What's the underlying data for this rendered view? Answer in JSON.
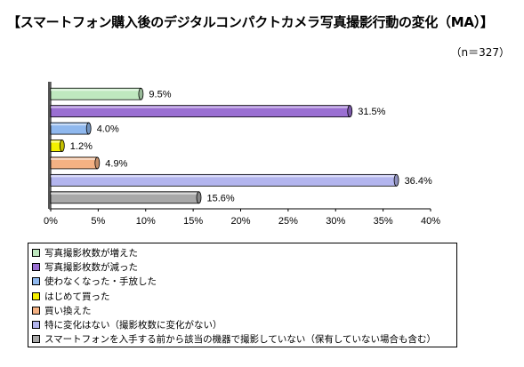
{
  "title": "【スマートフォン購入後のデジタルコンパクトカメラ写真撮影行動の変化（MA）】",
  "sample_size": "（n＝327）",
  "chart_data": {
    "type": "bar",
    "orientation": "horizontal",
    "style": "3d-cylinder",
    "categories": [
      "写真撮影枚数が増えた",
      "写真撮影枚数が減った",
      "使わなくなった・手放した",
      "はじめて買った",
      "買い換えた",
      "特に変化はない（撮影枚数に変化がない）",
      "スマートフォンを入手する前から該当の機器で撮影していない（保有していない場合も含む）"
    ],
    "values": [
      9.5,
      31.5,
      4.0,
      1.2,
      4.9,
      36.4,
      15.6
    ],
    "value_labels": [
      "9.5%",
      "31.5%",
      "4.0%",
      "1.2%",
      "4.9%",
      "36.4%",
      "15.6%"
    ],
    "colors": [
      "#bfe8bf",
      "#9a6fd2",
      "#8fb8ee",
      "#f5f000",
      "#f4b183",
      "#b3b5ee",
      "#a8a8a8"
    ],
    "xlim": [
      0,
      40
    ],
    "xticks": [
      "0%",
      "5%",
      "10%",
      "15%",
      "20%",
      "25%",
      "30%",
      "35%",
      "40%"
    ],
    "legend_position": "bottom",
    "grid": false
  }
}
